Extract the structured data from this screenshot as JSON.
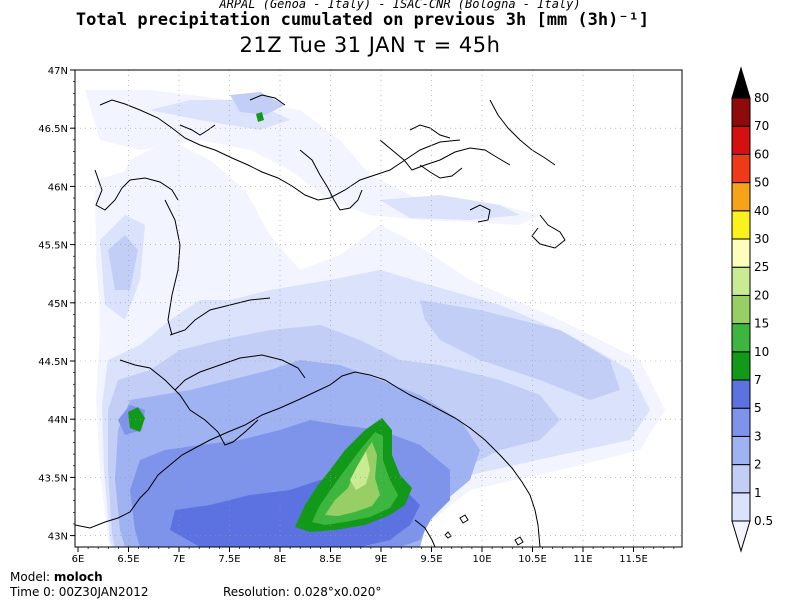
{
  "header": {
    "credits": "ARPAL (Genoa - Italy)  -  ISAC-CNR (Bologna - Italy)",
    "title": "Total precipitation cumulated on previous 3h [mm (3h)⁻¹]",
    "subtitle": "21Z Tue 31 JAN  τ = 45h"
  },
  "axes": {
    "lon_ticks": [
      "6E",
      "6.5E",
      "7E",
      "7.5E",
      "8E",
      "8.5E",
      "9E",
      "9.5E",
      "10E",
      "10.5E",
      "11E",
      "11.5E"
    ],
    "lat_ticks": [
      "47N",
      "46.5N",
      "46N",
      "45.5N",
      "45N",
      "44.5N",
      "44N",
      "43.5N",
      "43N"
    ]
  },
  "legend": {
    "levels": [
      "0.5",
      "1",
      "2",
      "3",
      "5",
      "7",
      "10",
      "15",
      "20",
      "25",
      "30",
      "40",
      "50",
      "60",
      "70",
      "80"
    ],
    "colors": [
      "#f2f4ff",
      "#dbe2fb",
      "#c3cef7",
      "#9fb2f2",
      "#7e94ea",
      "#5c72e0",
      "#13991a",
      "#3db63f",
      "#97cf66",
      "#c9eb94",
      "#fdfebb",
      "#fbf11c",
      "#f6a31a",
      "#ef3a1a",
      "#d51010",
      "#8f0a0a",
      "#000000"
    ]
  },
  "footer": {
    "model_label": "Model:",
    "model_value": "moloch",
    "time_label": "Time 0:",
    "time_value": "00Z30JAN2012",
    "resolution_label": "Resolution:",
    "resolution_value": "0.028°x0.020°"
  }
}
